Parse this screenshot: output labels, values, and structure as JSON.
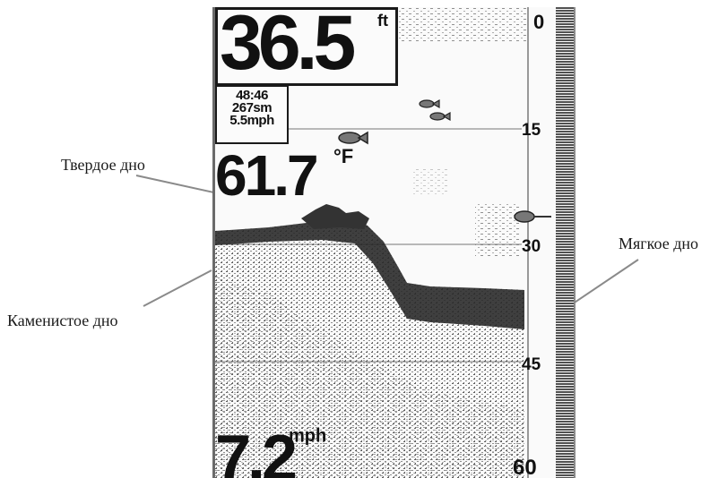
{
  "annotations": {
    "hard_bottom": "Твердое дно",
    "rocky_bottom": "Каменистое дно",
    "soft_bottom": "Мягкое дно"
  },
  "display": {
    "depth": {
      "value": "36.5",
      "unit": "ft"
    },
    "info": {
      "time": "48:46",
      "distance": "267sm",
      "speed": "5.5mph"
    },
    "temperature": {
      "value": "61.7",
      "unit": "°F"
    },
    "speed": {
      "value": "7.2",
      "unit": "mph"
    },
    "depth_scale": [
      "0",
      "15",
      "30",
      "45",
      "60"
    ]
  },
  "icons": [
    "fish-icon",
    "bottom-return-fish-icon"
  ],
  "colors": {
    "sonar_dark": "#222222",
    "sonar_mid": "#777777",
    "sonar_light": "#bbbbbb",
    "background": "#fafafa"
  }
}
